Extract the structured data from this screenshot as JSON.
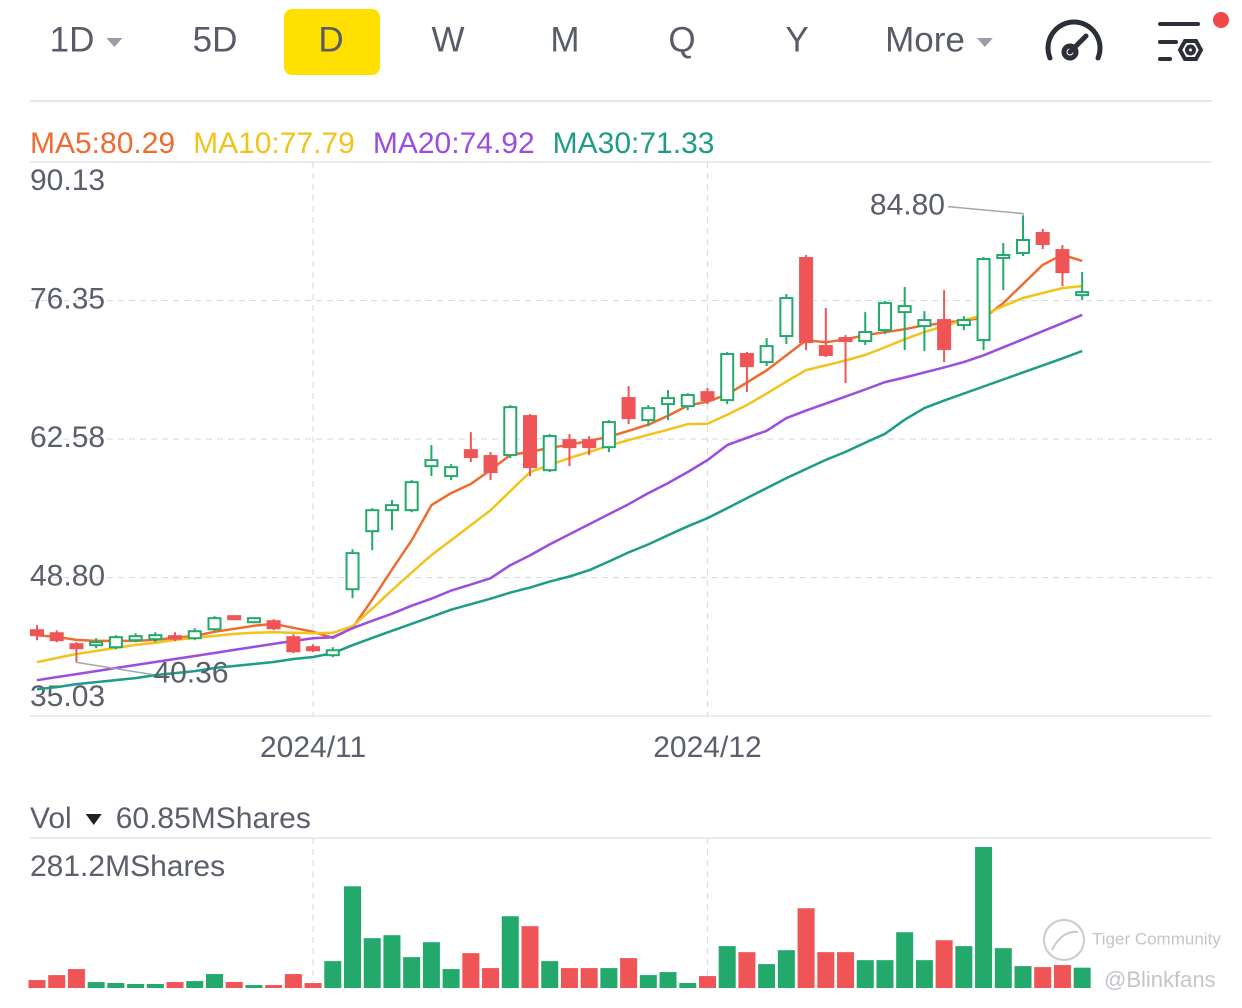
{
  "toolbar": {
    "tabs": [
      "1D",
      "5D",
      "D",
      "W",
      "M",
      "Q",
      "Y",
      "More"
    ],
    "selected": 2,
    "dropdown": [
      0,
      7
    ]
  },
  "chart_data": [
    {
      "type": "candlestick",
      "categories": [
        null,
        null,
        null,
        null,
        null,
        null,
        null,
        null,
        null,
        null,
        null,
        null,
        null,
        null,
        "2024/11",
        null,
        null,
        null,
        null,
        null,
        null,
        null,
        null,
        null,
        null,
        null,
        null,
        null,
        null,
        null,
        null,
        null,
        null,
        null,
        "2024/12",
        null,
        null,
        null,
        null,
        null,
        null,
        null,
        null,
        null,
        null,
        null,
        null,
        null,
        null,
        null,
        null,
        null,
        null,
        null
      ],
      "open": [
        43.56,
        43.26,
        42.17,
        42.07,
        41.87,
        42.57,
        42.67,
        42.97,
        42.77,
        43.66,
        44.96,
        44.36,
        44.46,
        42.87,
        41.87,
        41.08,
        47.64,
        53.41,
        55.5,
        55.5,
        59.88,
        58.89,
        61.47,
        60.88,
        60.98,
        64.86,
        59.48,
        62.47,
        62.47,
        61.77,
        66.65,
        64.46,
        66.05,
        65.85,
        67.24,
        66.45,
        71.03,
        70.23,
        72.82,
        80.58,
        71.82,
        72.62,
        72.32,
        73.41,
        75.2,
        73.81,
        74.41,
        73.91,
        72.42,
        80.58,
        81.08,
        83.07,
        81.37,
        76.89
      ],
      "high": [
        44.06,
        43.56,
        42.37,
        42.77,
        43.07,
        43.26,
        43.36,
        43.36,
        43.76,
        44.96,
        45.06,
        44.86,
        44.66,
        43.16,
        42.17,
        41.87,
        51.62,
        55.7,
        56.5,
        58.49,
        61.97,
        60.08,
        63.26,
        61.28,
        65.95,
        65.06,
        63.07,
        63.07,
        62.87,
        64.46,
        67.84,
        65.95,
        67.44,
        67.14,
        67.64,
        71.23,
        71.23,
        72.62,
        77.0,
        80.88,
        75.6,
        72.92,
        75.2,
        76.3,
        77.69,
        75.3,
        77.39,
        74.81,
        80.68,
        82.07,
        84.8,
        83.47,
        81.87,
        79.18
      ],
      "low": [
        42.57,
        42.37,
        40.36,
        41.77,
        41.67,
        42.37,
        42.37,
        42.47,
        42.57,
        43.46,
        44.56,
        44.26,
        43.56,
        41.28,
        41.38,
        40.88,
        46.75,
        51.52,
        53.51,
        55.3,
        58.89,
        58.49,
        60.28,
        58.49,
        60.68,
        58.89,
        59.29,
        59.88,
        60.98,
        61.28,
        64.06,
        63.86,
        64.46,
        65.45,
        66.05,
        66.05,
        67.24,
        69.83,
        72.02,
        71.42,
        70.73,
        68.14,
        71.92,
        73.02,
        71.42,
        71.32,
        70.23,
        73.41,
        71.42,
        77.39,
        80.78,
        81.47,
        77.79,
        76.4
      ],
      "close": [
        43.07,
        42.57,
        41.77,
        42.37,
        42.87,
        42.97,
        43.07,
        42.77,
        43.46,
        44.76,
        44.66,
        44.76,
        43.76,
        41.47,
        41.57,
        41.57,
        51.23,
        55.5,
        56.0,
        58.29,
        60.48,
        59.78,
        60.78,
        59.29,
        65.75,
        59.78,
        62.87,
        61.77,
        61.77,
        64.26,
        64.66,
        65.65,
        66.65,
        66.95,
        66.45,
        71.03,
        69.83,
        71.82,
        76.6,
        72.22,
        70.93,
        72.32,
        73.22,
        76.1,
        75.8,
        74.41,
        71.52,
        74.41,
        80.48,
        80.88,
        82.37,
        81.97,
        79.18,
        77.19
      ],
      "up_color": "#22a96b",
      "down_color": "#ef5456",
      "series": [
        {
          "name": "MA5:80.29",
          "color": "#ef6b2f",
          "values": [
            43.07,
            42.9,
            42.6,
            42.5,
            42.5,
            42.5,
            42.6,
            42.8,
            43.0,
            43.4,
            43.7,
            44.0,
            44.2,
            43.8,
            43.4,
            42.8,
            43.8,
            46.6,
            49.6,
            52.5,
            56.0,
            57.2,
            58.1,
            59.5,
            61.0,
            61.3,
            61.7,
            62.0,
            62.4,
            62.8,
            63.4,
            64.0,
            64.9,
            65.9,
            66.3,
            67.0,
            68.2,
            69.4,
            70.9,
            72.4,
            72.2,
            72.5,
            72.9,
            73.2,
            73.5,
            73.9,
            74.1,
            74.4,
            74.6,
            76.1,
            78.0,
            79.9,
            80.9,
            80.29
          ]
        },
        {
          "name": "MA10:77.79",
          "color": "#f2c31c",
          "values": [
            40.38,
            40.8,
            41.2,
            41.5,
            41.8,
            42.1,
            42.3,
            42.6,
            42.8,
            43.0,
            43.2,
            43.3,
            43.36,
            43.3,
            43.26,
            43.3,
            43.96,
            45.7,
            47.54,
            49.3,
            51.03,
            52.5,
            54.0,
            55.5,
            57.4,
            59.29,
            60.0,
            60.68,
            61.3,
            61.9,
            62.47,
            63.0,
            63.5,
            64.06,
            64.1,
            65.0,
            65.95,
            67.1,
            68.3,
            69.43,
            69.9,
            70.4,
            70.93,
            71.7,
            72.5,
            73.22,
            73.8,
            74.4,
            74.91,
            75.8,
            76.6,
            77.1,
            77.59,
            77.79
          ]
        },
        {
          "name": "MA20:74.92",
          "color": "#9a4de0",
          "values": [
            38.59,
            38.9,
            39.2,
            39.5,
            39.8,
            40.1,
            40.4,
            40.7,
            41.0,
            41.3,
            41.6,
            41.9,
            42.2,
            42.5,
            42.77,
            42.87,
            43.76,
            44.5,
            45.2,
            46.0,
            46.7,
            47.5,
            48.1,
            48.74,
            50.03,
            51.0,
            52.1,
            53.1,
            54.1,
            55.1,
            56.1,
            57.2,
            58.19,
            59.3,
            60.48,
            61.97,
            62.7,
            63.4,
            64.66,
            65.4,
            66.1,
            66.8,
            67.5,
            68.24,
            68.7,
            69.2,
            69.7,
            70.23,
            70.9,
            71.7,
            72.5,
            73.3,
            74.1,
            74.92
          ]
        },
        {
          "name": "MA30:71.33",
          "color": "#1e9c88",
          "values": [
            37.7,
            37.9,
            38.2,
            38.4,
            38.6,
            38.8,
            39.1,
            39.3,
            39.5,
            39.8,
            40.0,
            40.2,
            40.4,
            40.7,
            40.9,
            41.28,
            42.07,
            42.8,
            43.5,
            44.2,
            44.9,
            45.6,
            46.15,
            46.7,
            47.3,
            47.8,
            48.4,
            48.9,
            49.53,
            50.4,
            51.3,
            52.1,
            53.0,
            53.9,
            54.71,
            55.7,
            56.7,
            57.7,
            58.69,
            59.6,
            60.5,
            61.3,
            62.2,
            63.1,
            64.5,
            65.65,
            66.4,
            67.1,
            67.8,
            68.5,
            69.2,
            69.9,
            70.6,
            71.33
          ]
        }
      ],
      "ylim": [
        35.03,
        90.13
      ],
      "yticks": [
        90.13,
        76.35,
        62.58,
        {
          "value": 48.8,
          "label": "48.80"
        },
        35.03
      ],
      "grid": true,
      "high_label": "84.80",
      "low_label": "40.36"
    },
    {
      "type": "bar",
      "title": "Vol",
      "readout": "60.85MShares",
      "values": [
        38.2,
        47.3,
        58.3,
        34.6,
        32.8,
        31.0,
        31.0,
        34.6,
        36.4,
        49.2,
        34.6,
        29.1,
        29.1,
        49.2,
        32.8,
        72.8,
        209.4,
        114.7,
        120.2,
        80.1,
        107.4,
        58.3,
        87.4,
        60.1,
        154.8,
        136.6,
        72.8,
        60.1,
        60.1,
        60.1,
        78.3,
        47.3,
        52.8,
        32.8,
        45.5,
        100.2,
        89.2,
        67.4,
        92.8,
        169.4,
        89.2,
        89.2,
        74.6,
        74.6,
        125.6,
        74.6,
        111.0,
        100.2,
        281.2,
        96.5,
        63.7,
        61.9,
        65.6,
        60.85
      ],
      "ylim": [
        0,
        281.2
      ],
      "yticks": [
        {
          "value": 281.2,
          "label": "281.2MShares"
        }
      ]
    }
  ],
  "watermark": {
    "brand": "Tiger Community",
    "user": "@Blinkfans"
  }
}
